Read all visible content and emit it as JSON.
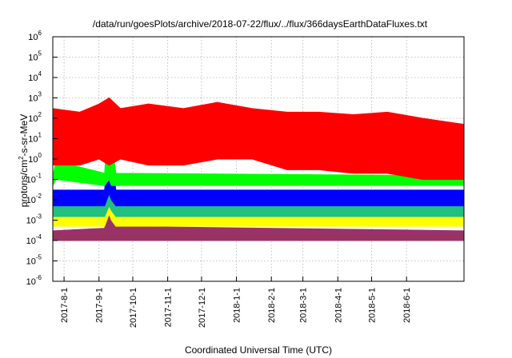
{
  "chart_data": {
    "type": "area",
    "title": "/data/run/goesPlots/archive/2018-07-22/flux/../flux/366daysEarthDataFluxes.txt",
    "xlabel": "Coordinated Universal Time (UTC)",
    "ylabel_main": "protons/cm",
    "ylabel_sup": "2",
    "ylabel_rest": "-s-sr-MeV",
    "yscale": "log",
    "ylim_exp": [
      -6,
      6
    ],
    "y_ticks": [
      {
        "base": "10",
        "exp": "6"
      },
      {
        "base": "10",
        "exp": "5"
      },
      {
        "base": "10",
        "exp": "4"
      },
      {
        "base": "10",
        "exp": "3"
      },
      {
        "base": "10",
        "exp": "2"
      },
      {
        "base": "10",
        "exp": "1"
      },
      {
        "base": "10",
        "exp": "0"
      },
      {
        "base": "10",
        "exp": "-1"
      },
      {
        "base": "10",
        "exp": "-2"
      },
      {
        "base": "10",
        "exp": "-3"
      },
      {
        "base": "10",
        "exp": "-4"
      },
      {
        "base": "10",
        "exp": "-5"
      },
      {
        "base": "10",
        "exp": "-6"
      }
    ],
    "xlim": [
      "2017-07-22",
      "2018-07-22"
    ],
    "x_ticks": [
      "2017-8-1",
      "2017-9-1",
      "2017-10-1",
      "2017-11-1",
      "2017-12-1",
      "2018-1-1",
      "2018-2-1",
      "2018-3-1",
      "2018-4-1",
      "2018-5-1",
      "2018-6-1"
    ],
    "x_tick_dates": [
      "2017-08-01",
      "2017-09-01",
      "2017-10-01",
      "2017-11-01",
      "2017-12-01",
      "2018-01-01",
      "2018-02-01",
      "2018-03-01",
      "2018-04-01",
      "2018-05-01",
      "2018-06-01"
    ],
    "grid": true,
    "series": [
      {
        "color": "#993366",
        "date": [
          "2017-07-22",
          "2017-09-06",
          "2017-09-10",
          "2017-09-12",
          "2017-09-16",
          "2018-07-22"
        ],
        "upper": [
          0.0003,
          0.0004,
          0.02,
          0.005,
          0.0005,
          0.0003
        ],
        "lower": [
          0.0001,
          0.0001,
          0.0001,
          0.0001,
          0.0001,
          0.0001
        ]
      },
      {
        "color": "#ffff00",
        "date": [
          "2017-07-22",
          "2017-09-06",
          "2017-09-10",
          "2017-09-12",
          "2017-09-16",
          "2018-07-22"
        ],
        "upper": [
          0.0015,
          0.002,
          0.3,
          0.05,
          0.002,
          0.0015
        ],
        "lower": [
          0.0005,
          0.0005,
          0.002,
          0.001,
          0.0005,
          0.0005
        ]
      },
      {
        "color": "#20c080",
        "date": [
          "2017-07-22",
          "2017-09-06",
          "2017-09-10",
          "2017-09-12",
          "2017-09-16",
          "2018-07-22"
        ],
        "upper": [
          0.005,
          0.006,
          1.0,
          0.2,
          0.006,
          0.005
        ],
        "lower": [
          0.0015,
          0.0015,
          0.005,
          0.003,
          0.0015,
          0.0015
        ]
      },
      {
        "color": "#0000ff",
        "date": [
          "2017-07-22",
          "2017-09-06",
          "2017-09-10",
          "2017-09-12",
          "2017-09-16",
          "2018-07-22"
        ],
        "upper": [
          0.03,
          0.03,
          10,
          2,
          0.03,
          0.03
        ],
        "lower": [
          0.005,
          0.005,
          0.02,
          0.01,
          0.005,
          0.005
        ]
      },
      {
        "color": "#00ff00",
        "date": [
          "2017-07-22",
          "2017-07-25",
          "2017-09-06",
          "2017-09-10",
          "2017-09-12",
          "2017-09-16",
          "2018-07-22"
        ],
        "upper": [
          0.15,
          0.8,
          0.2,
          500,
          10,
          0.2,
          0.15
        ],
        "lower": [
          0.05,
          0.1,
          0.05,
          0.1,
          0.05,
          0.05,
          0.05
        ]
      },
      {
        "color": "#ff0000",
        "date": [
          "2017-07-22",
          "2017-08-15",
          "2017-09-01",
          "2017-09-10",
          "2017-09-20",
          "2017-10-15",
          "2017-11-15",
          "2017-12-15",
          "2018-01-15",
          "2018-02-15",
          "2018-03-15",
          "2018-04-15",
          "2018-05-15",
          "2018-06-15",
          "2018-07-22"
        ],
        "upper": [
          300,
          200,
          500,
          1000,
          300,
          500,
          300,
          600,
          300,
          200,
          200,
          150,
          200,
          100,
          50
        ],
        "lower": [
          0.5,
          0.5,
          1,
          0.5,
          1,
          0.5,
          0.5,
          1,
          1,
          0.3,
          0.3,
          0.2,
          0.2,
          0.1,
          0.1
        ]
      }
    ]
  }
}
